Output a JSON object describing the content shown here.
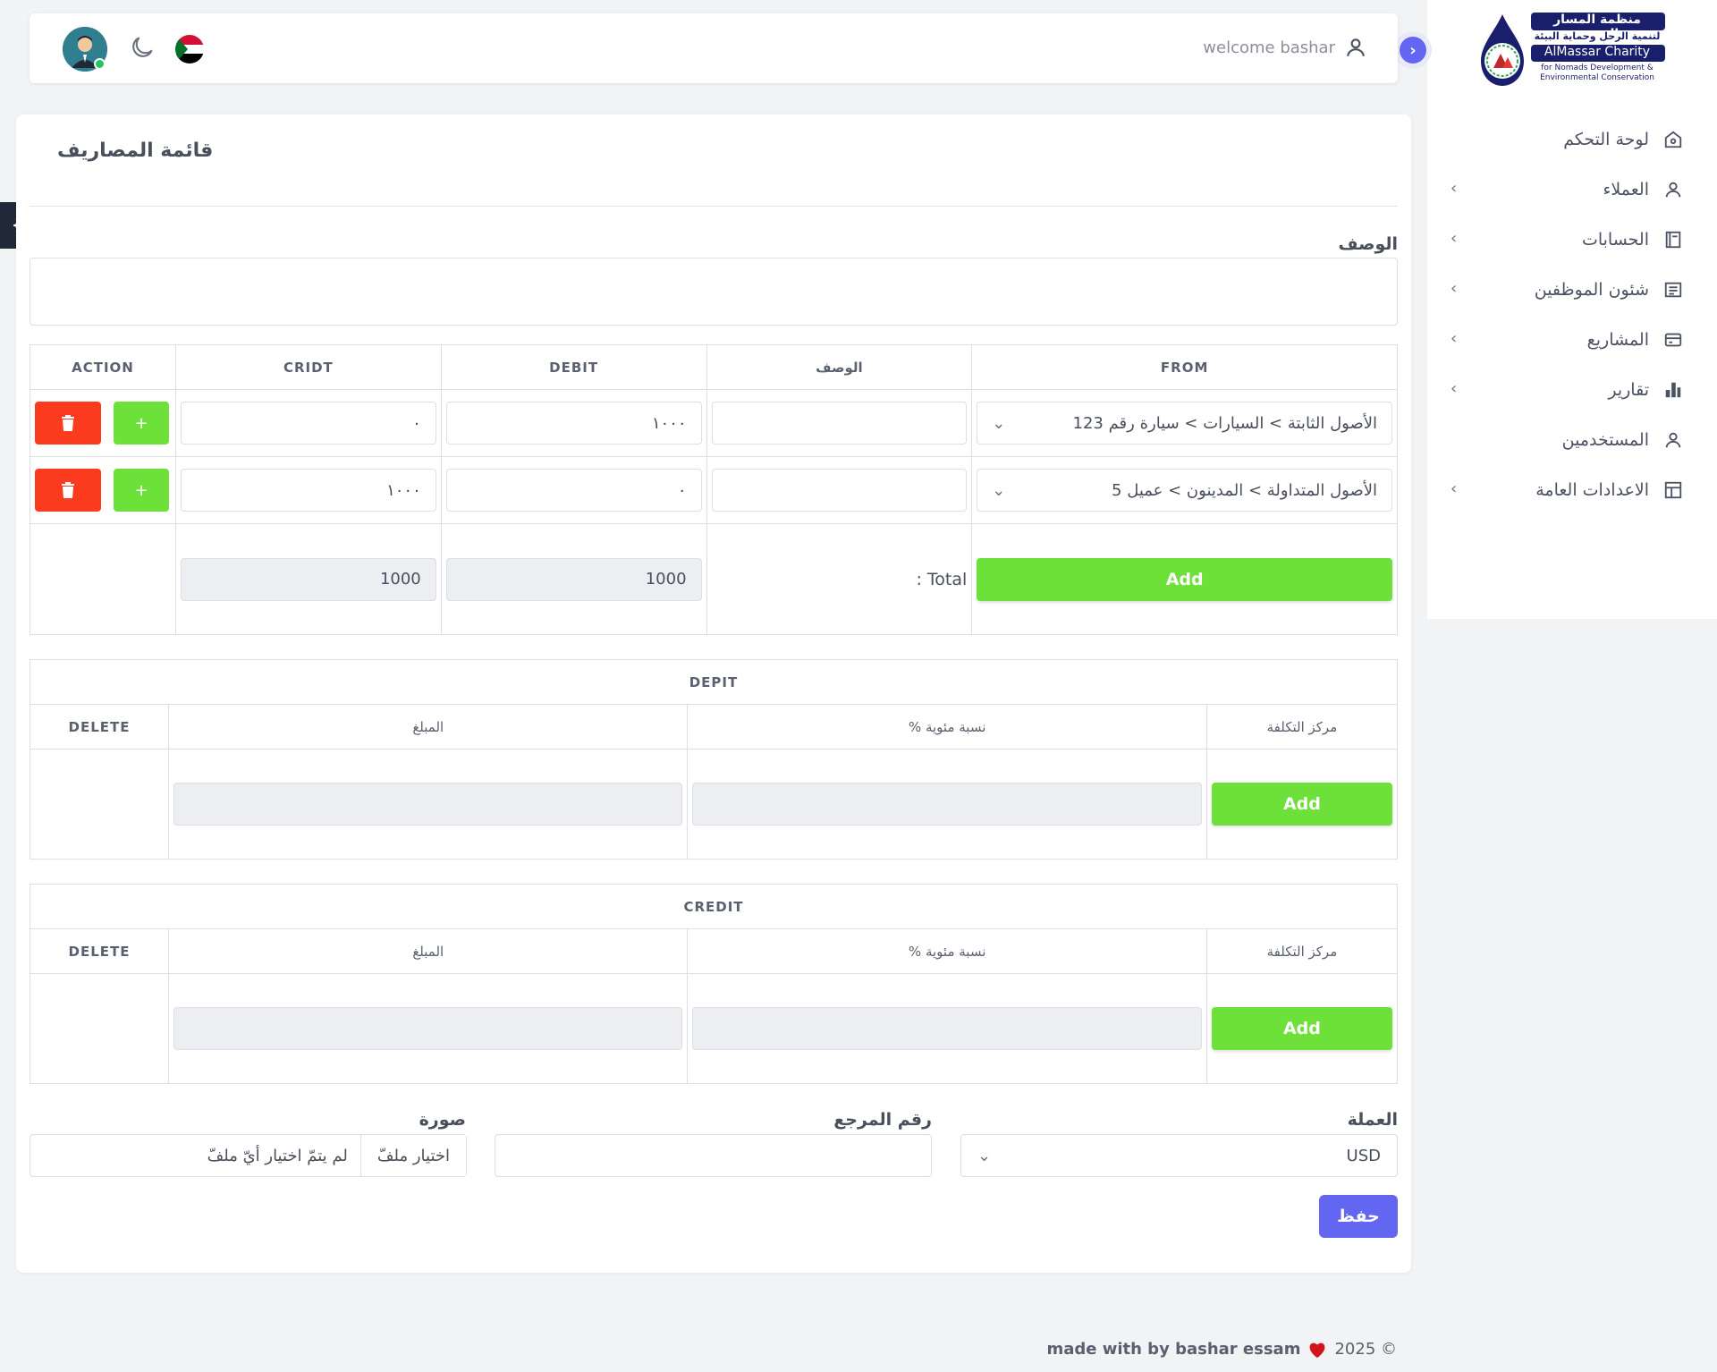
{
  "logo": {
    "arabic_line1": "منظمة المسار الخيرية",
    "arabic_line2": "لتنمية الرحل وحماية البيئة",
    "english_name": "AlMassar Charity",
    "english_tag1": "for Nomads Development &",
    "english_tag2": "Environmental Conservation"
  },
  "header": {
    "welcome": "welcome bashar"
  },
  "sidebar": {
    "items": [
      {
        "label": "لوحة التحكم",
        "icon": "home-icon",
        "chevron": false
      },
      {
        "label": "العملاء",
        "icon": "user-icon",
        "chevron": true
      },
      {
        "label": "الحسابات",
        "icon": "book-icon",
        "chevron": true
      },
      {
        "label": "شئون الموظفين",
        "icon": "document-icon",
        "chevron": true
      },
      {
        "label": "المشاريع",
        "icon": "card-icon",
        "chevron": true
      },
      {
        "label": "تقارير",
        "icon": "bar-chart-icon",
        "chevron": true
      },
      {
        "label": "المستخدمين",
        "icon": "user-icon",
        "chevron": false
      },
      {
        "label": "الاعدادات العامة",
        "icon": "layout-icon",
        "chevron": true
      }
    ]
  },
  "page": {
    "title": "قائمة المصاريف",
    "description_label": "الوصف"
  },
  "entries": {
    "headers": {
      "action": "ACTION",
      "credit": "CRIDT",
      "debit": "DEBIT",
      "description": "الوصف",
      "from": "FROM"
    },
    "rows": [
      {
        "from": "الأصول الثابتة > السيارات > سيارة رقم 123",
        "description": "",
        "debit": "١٠٠٠",
        "credit": "٠",
        "plus": "+"
      },
      {
        "from": "الأصول المتداولة > المدينون > عميل 5",
        "description": "",
        "debit": "٠",
        "credit": "١٠٠٠",
        "plus": "+"
      }
    ],
    "add_label": "Add",
    "total_label": ": Total",
    "total_debit": "1000",
    "total_credit": "1000"
  },
  "debit_section": {
    "title": "DEPIT",
    "headers": {
      "delete": "DELETE",
      "amount": "المبلغ",
      "percent": "% نسبة مئوية",
      "cost_center": "مركز التكلفة"
    },
    "add_label": "Add"
  },
  "credit_section": {
    "title": "CREDIT",
    "headers": {
      "delete": "DELETE",
      "amount": "المبلغ",
      "percent": "% نسبة مئوية",
      "cost_center": "مركز التكلفة"
    },
    "add_label": "Add"
  },
  "form": {
    "currency_label": "العملة",
    "currency_value": "USD",
    "reference_label": "رقم المرجع",
    "reference_value": "",
    "image_label": "صورة",
    "file_button": "اختيار ملفّ",
    "file_status": "لم يتمّ اختيار أيّ ملفّ",
    "save_label": "حفظ"
  },
  "footer": {
    "text": "made with by bashar essam",
    "year": "2025 ©"
  },
  "colors": {
    "accent": "#6366f1",
    "add_green": "#6ee03a",
    "delete_red": "#fb3b1e"
  }
}
